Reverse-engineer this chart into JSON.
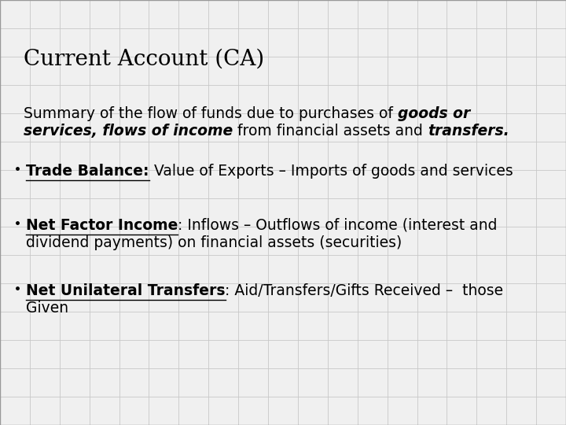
{
  "title": "Current Account (CA)",
  "background_color": "#f0f0f0",
  "grid_color": "#c8c8c8",
  "text_color": "#000000",
  "title_fontsize": 20,
  "body_fontsize": 13.5,
  "bullet_fontsize": 13.5,
  "title_font": "DejaVu Serif",
  "body_font": "DejaVu Sans Condensed",
  "summary_plain1": "Summary of the flow of funds due to purchases of ",
  "summary_bold1": "goods or",
  "summary_bold2": "services, flows of income",
  "summary_plain2": " from financial assets and ",
  "summary_bold3": "transfers.",
  "b1_underline": "Trade Balance:",
  "b1_plain": " Value of Exports – Imports of goods and services",
  "b2_underline": "Net Factor Income",
  "b2_plain": ": Inflows – Outflows of income (interest and",
  "b2_plain2": "dividend payments) on financial assets (securities)",
  "b3_underline": "Net Unilateral Transfers",
  "b3_plain": ": Aid/Transfers/Gifts Received –  those",
  "b3_plain2": "Given",
  "grid_nx": 19,
  "grid_ny": 15
}
